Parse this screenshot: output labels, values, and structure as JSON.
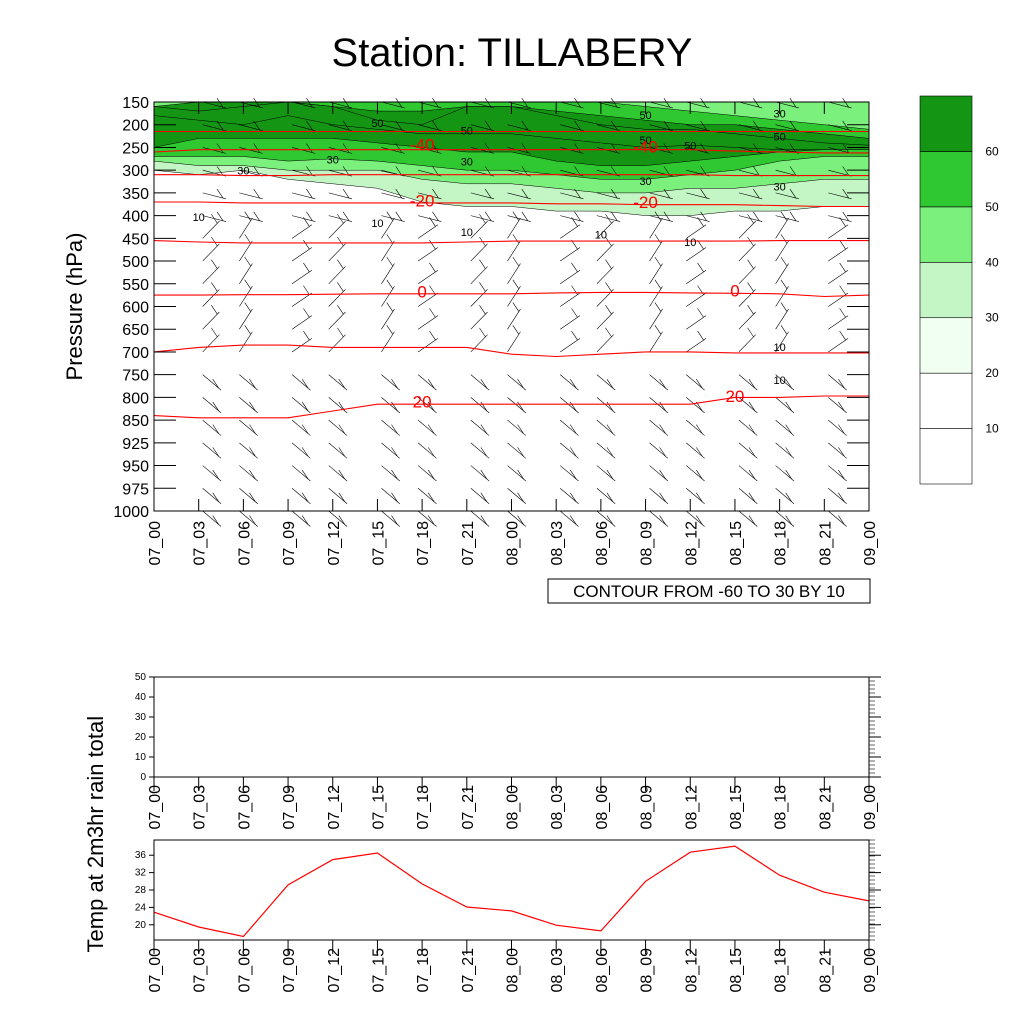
{
  "title": "Station: TILLABERY",
  "colors": {
    "temp_contour": "#ff0000",
    "wind_contour": "#000000",
    "fill_levels": [
      "#ffffff",
      "#ffffff",
      "#f0fff0",
      "#c4f5c4",
      "#7cf07c",
      "#30c830",
      "#149614"
    ]
  },
  "time_labels": [
    "07_00",
    "07_03",
    "07_06",
    "07_09",
    "07_12",
    "07_15",
    "07_18",
    "07_21",
    "08_00",
    "08_03",
    "08_06",
    "08_09",
    "08_12",
    "08_15",
    "08_18",
    "08_21",
    "09_00"
  ],
  "chart_data": [
    {
      "type": "heatmap",
      "name": "pressure-time-section",
      "ylabel": "Pressure (hPa)",
      "y_levels": [
        150,
        200,
        250,
        300,
        350,
        400,
        450,
        500,
        550,
        600,
        650,
        700,
        750,
        800,
        850,
        925,
        950,
        975,
        1000
      ],
      "y_direction": "descending",
      "x": [
        "07_00",
        "07_03",
        "07_06",
        "07_09",
        "07_12",
        "07_15",
        "07_18",
        "07_21",
        "08_00",
        "08_03",
        "08_06",
        "08_09",
        "08_12",
        "08_15",
        "08_18",
        "08_21",
        "09_00"
      ],
      "colorbar": {
        "ticks": [
          10,
          20,
          30,
          40,
          50,
          60
        ],
        "boundaries": [
          0,
          10,
          20,
          30,
          40,
          50,
          60,
          70
        ]
      },
      "shaded_bands": [
        {
          "level": 20,
          "top": [
            150,
            150,
            150,
            150,
            150,
            150,
            150,
            150,
            150,
            150,
            150,
            150,
            150,
            150,
            150,
            150,
            150
          ],
          "bottom": [
            300,
            310,
            300,
            320,
            330,
            340,
            370,
            380,
            380,
            390,
            390,
            400,
            400,
            390,
            390,
            380,
            380
          ]
        },
        {
          "level": 30,
          "top": [
            150,
            150,
            150,
            150,
            150,
            150,
            150,
            150,
            150,
            150,
            150,
            150,
            150,
            150,
            150,
            150,
            150
          ],
          "bottom": [
            280,
            290,
            290,
            300,
            300,
            300,
            320,
            330,
            330,
            340,
            350,
            350,
            340,
            340,
            330,
            320,
            320
          ]
        },
        {
          "level": 40,
          "top": [
            160,
            160,
            150,
            150,
            150,
            150,
            150,
            150,
            150,
            150,
            150,
            160,
            170,
            180,
            190,
            200,
            210
          ],
          "bottom": [
            270,
            270,
            270,
            280,
            275,
            280,
            290,
            300,
            300,
            310,
            320,
            320,
            310,
            300,
            280,
            270,
            270
          ]
        },
        {
          "level": 50,
          "top": [
            160,
            150,
            150,
            150,
            160,
            170,
            170,
            160,
            160,
            170,
            180,
            190,
            200,
            200,
            210,
            220,
            230
          ],
          "bottom": [
            250,
            230,
            230,
            230,
            230,
            240,
            250,
            260,
            260,
            280,
            290,
            290,
            280,
            270,
            260,
            255,
            250
          ]
        },
        {
          "level": 60,
          "top": [
            160,
            170,
            160,
            150,
            160,
            190,
            200,
            160,
            160,
            180,
            200,
            210,
            210,
            220,
            230,
            240,
            245
          ],
          "bottom": [
            180,
            190,
            200,
            180,
            200,
            210,
            220,
            220,
            220,
            230,
            240,
            250,
            245,
            250,
            255,
            255,
            255
          ]
        }
      ],
      "temp_contours": [
        {
          "value": -40,
          "label": "-40",
          "p": [
            215,
            215,
            215,
            215,
            215,
            215,
            215,
            215,
            215,
            215,
            215,
            215,
            215,
            215,
            215,
            215,
            215
          ]
        },
        {
          "value": -40,
          "label": "-40",
          "p": [
            260,
            255,
            255,
            255,
            255,
            255,
            255,
            255,
            255,
            255,
            255,
            255,
            255,
            258,
            260,
            262,
            262
          ]
        },
        {
          "value": -30,
          "label": "",
          "p": [
            310,
            310,
            312,
            312,
            310,
            310,
            310,
            310,
            310,
            310,
            310,
            310,
            310,
            312,
            312,
            312,
            312
          ]
        },
        {
          "value": -20,
          "label": "-20",
          "p": [
            370,
            370,
            372,
            372,
            372,
            372,
            372,
            372,
            372,
            374,
            374,
            376,
            376,
            376,
            378,
            380,
            380
          ]
        },
        {
          "value": -10,
          "label": "",
          "p": [
            455,
            458,
            460,
            460,
            460,
            460,
            460,
            458,
            456,
            456,
            456,
            456,
            456,
            456,
            455,
            455,
            455
          ]
        },
        {
          "value": 0,
          "label": "0",
          "p": [
            575,
            575,
            574,
            574,
            573,
            572,
            572,
            572,
            572,
            570,
            569,
            569,
            570,
            571,
            572,
            578,
            575
          ]
        },
        {
          "value": 10,
          "label": "",
          "p": [
            700,
            690,
            685,
            685,
            690,
            690,
            690,
            690,
            705,
            710,
            705,
            700,
            700,
            702,
            702,
            702,
            702
          ]
        },
        {
          "value": 20,
          "label": "20",
          "p": [
            840,
            845,
            845,
            845,
            830,
            815,
            815,
            815,
            815,
            815,
            815,
            815,
            815,
            800,
            800,
            797,
            797
          ]
        }
      ],
      "temp_contour_labels": [
        {
          "value": -40,
          "x": "07_18",
          "p": 257
        },
        {
          "value": -40,
          "x": "08_09",
          "p": 261
        },
        {
          "value": -20,
          "x": "07_18",
          "p": 380
        },
        {
          "value": -20,
          "x": "08_09",
          "p": 383
        },
        {
          "value": 0,
          "x": "07_18",
          "p": 580
        },
        {
          "value": 0,
          "x": "08_15",
          "p": 578
        },
        {
          "value": 20,
          "x": "07_18",
          "p": 822
        },
        {
          "value": 20,
          "x": "08_15",
          "p": 810
        }
      ],
      "wind_speed_labels": [
        {
          "value": 50,
          "x": "07_15",
          "p": 205
        },
        {
          "value": 50,
          "x": "07_21",
          "p": 222
        },
        {
          "value": 50,
          "x": "08_09",
          "p": 187
        },
        {
          "value": 50,
          "x": "08_09",
          "p": 242
        },
        {
          "value": 50,
          "x": "08_12",
          "p": 255
        },
        {
          "value": 50,
          "x": "08_18",
          "p": 235
        },
        {
          "value": 30,
          "x": "08_18",
          "p": 184
        },
        {
          "value": 30,
          "x": "07_12",
          "p": 285
        },
        {
          "value": 30,
          "x": "07_06",
          "p": 310
        },
        {
          "value": 30,
          "x": "07_21",
          "p": 290
        },
        {
          "value": 30,
          "x": "08_09",
          "p": 333
        },
        {
          "value": 30,
          "x": "08_18",
          "p": 345
        },
        {
          "value": 10,
          "x": "07_03",
          "p": 412
        },
        {
          "value": 10,
          "x": "07_15",
          "p": 425
        },
        {
          "value": 10,
          "x": "07_21",
          "p": 445
        },
        {
          "value": 10,
          "x": "08_06",
          "p": 450
        },
        {
          "value": 10,
          "x": "08_12",
          "p": 467
        },
        {
          "value": 10,
          "x": "08_18",
          "p": 698
        },
        {
          "value": 10,
          "x": "08_18",
          "p": 770
        }
      ],
      "note": "CONTOUR FROM -60 TO 30 BY 10"
    },
    {
      "type": "bar",
      "name": "rain",
      "ylabel": "3hr rain total",
      "ylim": [
        0,
        50
      ],
      "yticks": [
        0,
        10,
        20,
        30,
        40,
        50
      ],
      "categories": [
        "07_00",
        "07_03",
        "07_06",
        "07_09",
        "07_12",
        "07_15",
        "07_18",
        "07_21",
        "08_00",
        "08_03",
        "08_06",
        "08_09",
        "08_12",
        "08_15",
        "08_18",
        "08_21",
        "09_00"
      ],
      "values": [
        0,
        0,
        0,
        0,
        0,
        0,
        0,
        0,
        0,
        0,
        0,
        0,
        0,
        0,
        0,
        0,
        0
      ]
    },
    {
      "type": "line",
      "name": "temp2m",
      "ylabel": "Temp at 2m",
      "ylim": [
        16.5,
        39.5
      ],
      "yticks": [
        20,
        24,
        28,
        32,
        36
      ],
      "categories": [
        "07_00",
        "07_03",
        "07_06",
        "07_09",
        "07_12",
        "07_15",
        "07_18",
        "07_21",
        "08_00",
        "08_03",
        "08_06",
        "08_09",
        "08_12",
        "08_15",
        "08_18",
        "08_21",
        "09_00"
      ],
      "values": [
        22.9,
        19.5,
        17.3,
        29.2,
        35.0,
        36.5,
        29.4,
        24.1,
        23.2,
        19.9,
        18.6,
        30.0,
        36.7,
        38.1,
        31.4,
        27.5,
        25.5
      ]
    }
  ]
}
